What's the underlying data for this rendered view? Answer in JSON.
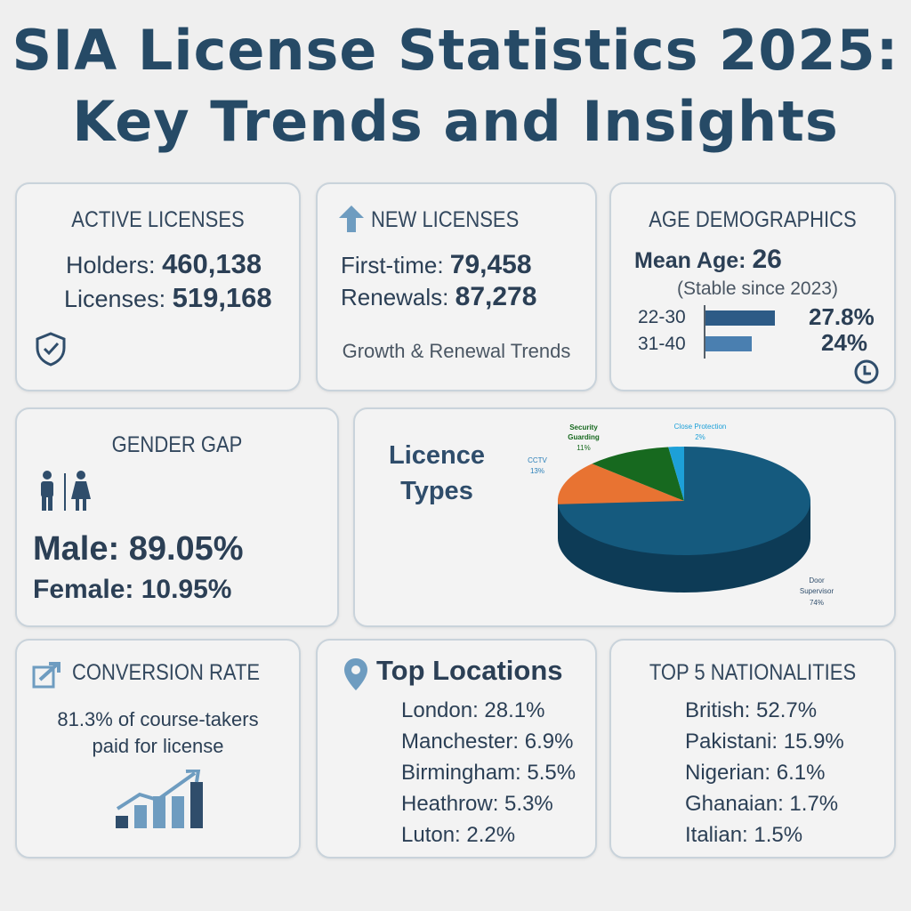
{
  "title": {
    "line1": "SIA License Statistics 2025:",
    "line2": "Key Trends and Insights"
  },
  "active": {
    "heading": "ACTIVE LICENSES",
    "holders_label": "Holders:",
    "holders_value": "460,138",
    "licenses_label": "Licenses:",
    "licenses_value": "519,168",
    "icon": "shield-check-icon"
  },
  "new": {
    "heading": "NEW LICENSES",
    "first_label": "First-time:",
    "first_value": "79,458",
    "renewals_label": "Renewals:",
    "renewals_value": "87,278",
    "footer": "Growth & Renewal Trends",
    "icon": "arrow-up-icon"
  },
  "age": {
    "heading": "AGE DEMOGRAPHICS",
    "mean_label": "Mean Age:",
    "mean_value": "26",
    "note": "(Stable since 2023)",
    "bars": [
      {
        "label": "22-30",
        "value": "27.8%",
        "pct": 27.8
      },
      {
        "label": "31-40",
        "value": "24%",
        "pct": 24
      }
    ],
    "icon": "clock-icon"
  },
  "gender": {
    "heading": "GENDER GAP",
    "male": "Male: 89.05%",
    "female": "Female: 10.95%",
    "icon": "male-female-icon"
  },
  "chart_data": {
    "type": "pie",
    "title": "Licence Types",
    "title_line1": "Licence",
    "title_line2": "Types",
    "style": "3d",
    "start": "top",
    "direction": "clockwise",
    "slices": [
      {
        "name": "Door Supervisor",
        "name_line1": "Door",
        "name_line2": "Supervisor",
        "label": "74%",
        "value": 74,
        "color": "#155a7e"
      },
      {
        "name": "CCTV",
        "label": "13%",
        "value": 13,
        "color": "#e87332"
      },
      {
        "name": "Security Guarding",
        "name_line1": "Security",
        "name_line2": "Guarding",
        "label": "11%",
        "value": 11,
        "color": "#17691f"
      },
      {
        "name": "Close Protection",
        "label": "2%",
        "value": 2,
        "color": "#1da0d8"
      }
    ]
  },
  "conversion": {
    "heading": "CONVERSION RATE",
    "line1": "81.3% of course-takers",
    "line2": "paid for license",
    "icon": "trend-chart-icon"
  },
  "locations": {
    "heading": "Top Locations",
    "icon": "map-pin-icon",
    "items": [
      "London: 28.1%",
      "Manchester: 6.9%",
      "Birmingham: 5.5%",
      "Heathrow: 5.3%",
      "Luton: 2.2%"
    ]
  },
  "nationalities": {
    "heading": "TOP 5 NATIONALITIES",
    "items": [
      "British: 52.7%",
      "Pakistani: 15.9%",
      "Nigerian: 6.1%",
      "Ghanaian: 1.7%",
      "Italian: 1.5%"
    ]
  }
}
